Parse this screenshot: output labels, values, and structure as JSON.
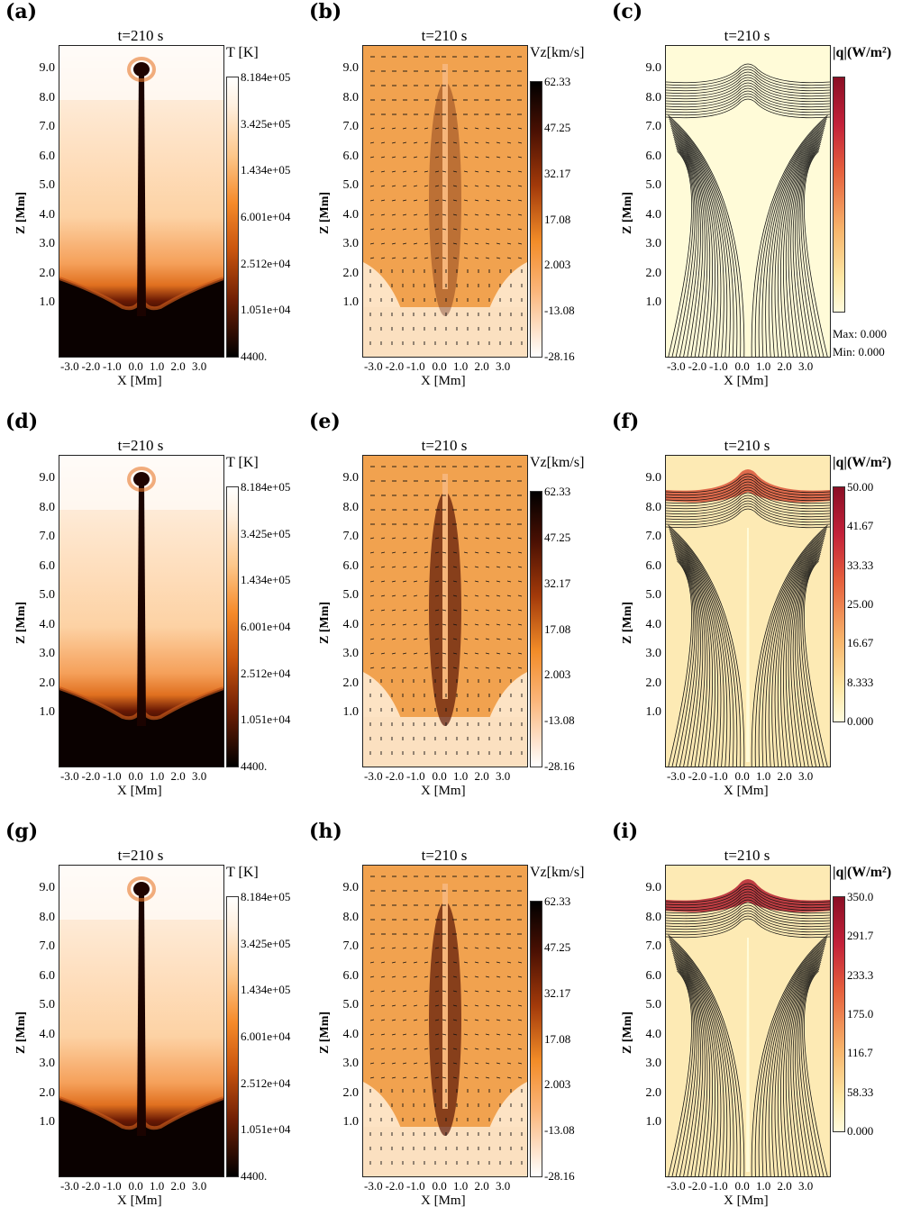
{
  "figure": {
    "panels": [
      {
        "id": "a",
        "label": "(a)",
        "title": "t=210 s",
        "kind": "temperature",
        "cbar_title": "T [K]",
        "cbar_ticks": [
          "8.184e+05",
          "3.425e+05",
          "1.434e+05",
          "6.001e+04",
          "2.512e+04",
          "1.051e+04",
          "4400."
        ],
        "xlabel": "X [Mm]",
        "ylabel": "Z [Mm]"
      },
      {
        "id": "b",
        "label": "(b)",
        "title": "t=210 s",
        "kind": "velocity",
        "cbar_title": "Vz[km/s]",
        "cbar_ticks": [
          "62.33",
          "47.25",
          "32.17",
          "17.08",
          "2.003",
          "-13.08",
          "-28.16"
        ],
        "xlabel": "X [Mm]",
        "ylabel": "Z [Mm]"
      },
      {
        "id": "c",
        "label": "(c)",
        "title": "t=210 s",
        "kind": "flux",
        "cbar_title": "|q|(W/m²)",
        "cbar_ticks": [],
        "max_label": "Max:  0.000",
        "min_label": "Min:  0.000",
        "xlabel": "X [Mm]",
        "ylabel": "Z [Mm]",
        "intensity": 0
      },
      {
        "id": "d",
        "label": "(d)",
        "title": "t=210 s",
        "kind": "temperature",
        "cbar_title": "T [K]",
        "cbar_ticks": [
          "8.184e+05",
          "3.425e+05",
          "1.434e+05",
          "6.001e+04",
          "2.512e+04",
          "1.051e+04",
          "4400."
        ],
        "xlabel": "X [Mm]",
        "ylabel": "Z [Mm]"
      },
      {
        "id": "e",
        "label": "(e)",
        "title": "t=210 s",
        "kind": "velocity",
        "cbar_title": "Vz[km/s]",
        "cbar_ticks": [
          "62.33",
          "47.25",
          "32.17",
          "17.08",
          "2.003",
          "-13.08",
          "-28.16"
        ],
        "xlabel": "X [Mm]",
        "ylabel": "Z [Mm]"
      },
      {
        "id": "f",
        "label": "(f)",
        "title": "t=210 s",
        "kind": "flux",
        "cbar_title": "|q|(W/m²)",
        "cbar_ticks": [
          "50.00",
          "41.67",
          "33.33",
          "25.00",
          "16.67",
          "8.333",
          "0.000"
        ],
        "xlabel": "X [Mm]",
        "ylabel": "Z [Mm]",
        "intensity": 1
      },
      {
        "id": "g",
        "label": "(g)",
        "title": "t=210 s",
        "kind": "temperature",
        "cbar_title": "T [K]",
        "cbar_ticks": [
          "8.184e+05",
          "3.425e+05",
          "1.434e+05",
          "6.001e+04",
          "2.512e+04",
          "1.051e+04",
          "4400."
        ],
        "xlabel": "X [Mm]",
        "ylabel": "Z [Mm]"
      },
      {
        "id": "h",
        "label": "(h)",
        "title": "t=210 s",
        "kind": "velocity",
        "cbar_title": "Vz[km/s]",
        "cbar_ticks": [
          "62.33",
          "47.25",
          "32.17",
          "17.08",
          "2.003",
          "-13.08",
          "-28.16"
        ],
        "xlabel": "X [Mm]",
        "ylabel": "Z [Mm]"
      },
      {
        "id": "i",
        "label": "(i)",
        "title": "t=210 s",
        "kind": "flux",
        "cbar_title": "|q|(W/m²)",
        "cbar_ticks": [
          "350.0",
          "291.7",
          "233.3",
          "175.0",
          "116.7",
          "58.33",
          "0.000"
        ],
        "xlabel": "X [Mm]",
        "ylabel": "Z [Mm]",
        "intensity": 2
      }
    ],
    "yticks": [
      "9.0",
      "8.0",
      "7.0",
      "6.0",
      "5.0",
      "4.0",
      "3.0",
      "2.0",
      "1.0"
    ],
    "xticks": [
      "-3.0",
      "-2.0",
      "-1.0",
      "0.0",
      "1.0",
      "2.0",
      "3.0"
    ]
  },
  "chart_data": [
    {
      "type": "heatmap",
      "panel": "a",
      "title": "t=210 s",
      "quantity": "T [K]",
      "xlabel": "X [Mm]",
      "ylabel": "Z [Mm]",
      "xlim": [
        -4.0,
        4.0
      ],
      "ylim": [
        0.0,
        10.0
      ],
      "color_range": [
        4400,
        818400
      ],
      "colorbar_ticks": [
        818400,
        342500,
        143400,
        60010,
        25120,
        10510,
        4400
      ]
    },
    {
      "type": "heatmap",
      "panel": "b",
      "title": "t=210 s",
      "quantity": "Vz[km/s]",
      "xlabel": "X [Mm]",
      "ylabel": "Z [Mm]",
      "xlim": [
        -4.0,
        4.0
      ],
      "ylim": [
        0.0,
        10.0
      ],
      "color_range": [
        -28.16,
        62.33
      ],
      "colorbar_ticks": [
        62.33,
        47.25,
        32.17,
        17.08,
        2.003,
        -13.08,
        -28.16
      ]
    },
    {
      "type": "heatmap",
      "panel": "c",
      "title": "t=210 s",
      "quantity": "|q|(W/m²)",
      "xlabel": "X [Mm]",
      "ylabel": "Z [Mm]",
      "xlim": [
        -4.0,
        4.0
      ],
      "ylim": [
        0.0,
        10.0
      ],
      "max": 0.0,
      "min": 0.0
    },
    {
      "type": "heatmap",
      "panel": "d",
      "title": "t=210 s",
      "quantity": "T [K]",
      "xlabel": "X [Mm]",
      "ylabel": "Z [Mm]",
      "xlim": [
        -4.0,
        4.0
      ],
      "ylim": [
        0.0,
        10.0
      ],
      "color_range": [
        4400,
        818400
      ],
      "colorbar_ticks": [
        818400,
        342500,
        143400,
        60010,
        25120,
        10510,
        4400
      ]
    },
    {
      "type": "heatmap",
      "panel": "e",
      "title": "t=210 s",
      "quantity": "Vz[km/s]",
      "xlabel": "X [Mm]",
      "ylabel": "Z [Mm]",
      "xlim": [
        -4.0,
        4.0
      ],
      "ylim": [
        0.0,
        10.0
      ],
      "color_range": [
        -28.16,
        62.33
      ],
      "colorbar_ticks": [
        62.33,
        47.25,
        32.17,
        17.08,
        2.003,
        -13.08,
        -28.16
      ]
    },
    {
      "type": "heatmap",
      "panel": "f",
      "title": "t=210 s",
      "quantity": "|q|(W/m²)",
      "xlabel": "X [Mm]",
      "ylabel": "Z [Mm]",
      "xlim": [
        -4.0,
        4.0
      ],
      "ylim": [
        0.0,
        10.0
      ],
      "color_range": [
        0.0,
        50.0
      ],
      "colorbar_ticks": [
        50.0,
        41.67,
        33.33,
        25.0,
        16.67,
        8.333,
        0.0
      ]
    },
    {
      "type": "heatmap",
      "panel": "g",
      "title": "t=210 s",
      "quantity": "T [K]",
      "xlabel": "X [Mm]",
      "ylabel": "Z [Mm]",
      "xlim": [
        -4.0,
        4.0
      ],
      "ylim": [
        0.0,
        10.0
      ],
      "color_range": [
        4400,
        818400
      ],
      "colorbar_ticks": [
        818400,
        342500,
        143400,
        60010,
        25120,
        10510,
        4400
      ]
    },
    {
      "type": "heatmap",
      "panel": "h",
      "title": "t=210 s",
      "quantity": "Vz[km/s]",
      "xlabel": "X [Mm]",
      "ylabel": "Z [Mm]",
      "xlim": [
        -4.0,
        4.0
      ],
      "ylim": [
        0.0,
        10.0
      ],
      "color_range": [
        -28.16,
        62.33
      ],
      "colorbar_ticks": [
        62.33,
        47.25,
        32.17,
        17.08,
        2.003,
        -13.08,
        -28.16
      ]
    },
    {
      "type": "heatmap",
      "panel": "i",
      "title": "t=210 s",
      "quantity": "|q|(W/m²)",
      "xlabel": "X [Mm]",
      "ylabel": "Z [Mm]",
      "xlim": [
        -4.0,
        4.0
      ],
      "ylim": [
        0.0,
        10.0
      ],
      "color_range": [
        0.0,
        350.0
      ],
      "colorbar_ticks": [
        350.0,
        291.7,
        233.3,
        175.0,
        116.7,
        58.33,
        0.0
      ]
    }
  ]
}
